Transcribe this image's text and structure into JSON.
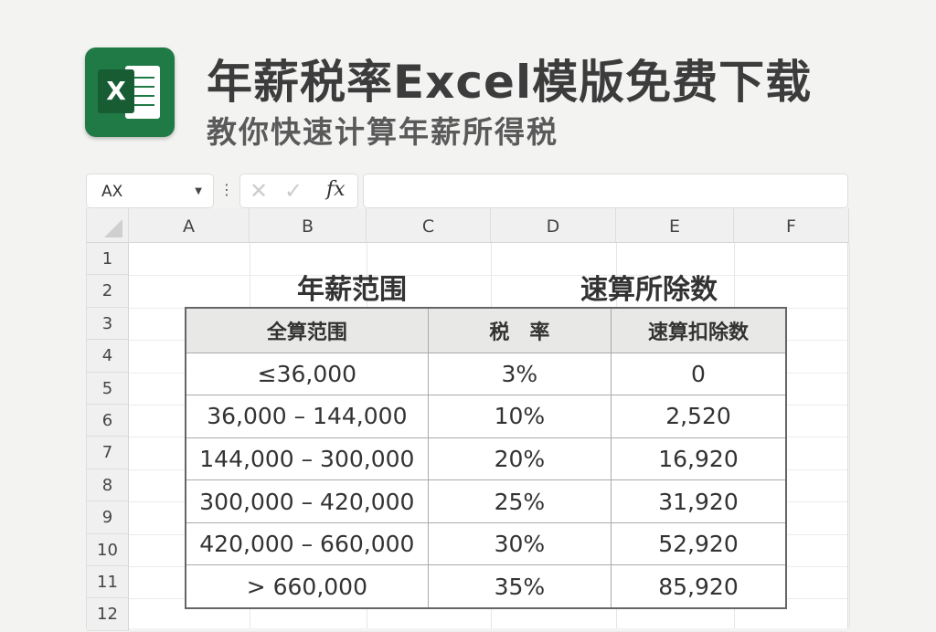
{
  "app": {
    "icon": "excel-logo-icon",
    "logo_letter": "X",
    "brand_color": "#1f7a45"
  },
  "header": {
    "title": "年薪税率Excel模版免费下载",
    "subtitle": "教你快速计算年薪所得税"
  },
  "formula_bar": {
    "name_box": "AX",
    "formula": ""
  },
  "columns": [
    "A",
    "B",
    "C",
    "D",
    "E",
    "F"
  ],
  "rows": [
    "1",
    "2",
    "3",
    "4",
    "5",
    "6",
    "7",
    "8",
    "9",
    "10",
    "11",
    "12"
  ],
  "sections": {
    "left": "年薪范围",
    "right": "速算所除数"
  },
  "table": {
    "headers": [
      "全算范围",
      "税　率",
      "速算扣除数"
    ],
    "rows": [
      [
        "≤36,000",
        "3%",
        "0"
      ],
      [
        "36,000 – 144,000",
        "10%",
        "2,520"
      ],
      [
        "144,000 – 300,000",
        "20%",
        "16,920"
      ],
      [
        "300,000 – 420,000",
        "25%",
        "31,920"
      ],
      [
        "420,000 – 660,000",
        "30%",
        "52,920"
      ],
      [
        "> 660,000",
        "35%",
        "85,920"
      ]
    ]
  }
}
